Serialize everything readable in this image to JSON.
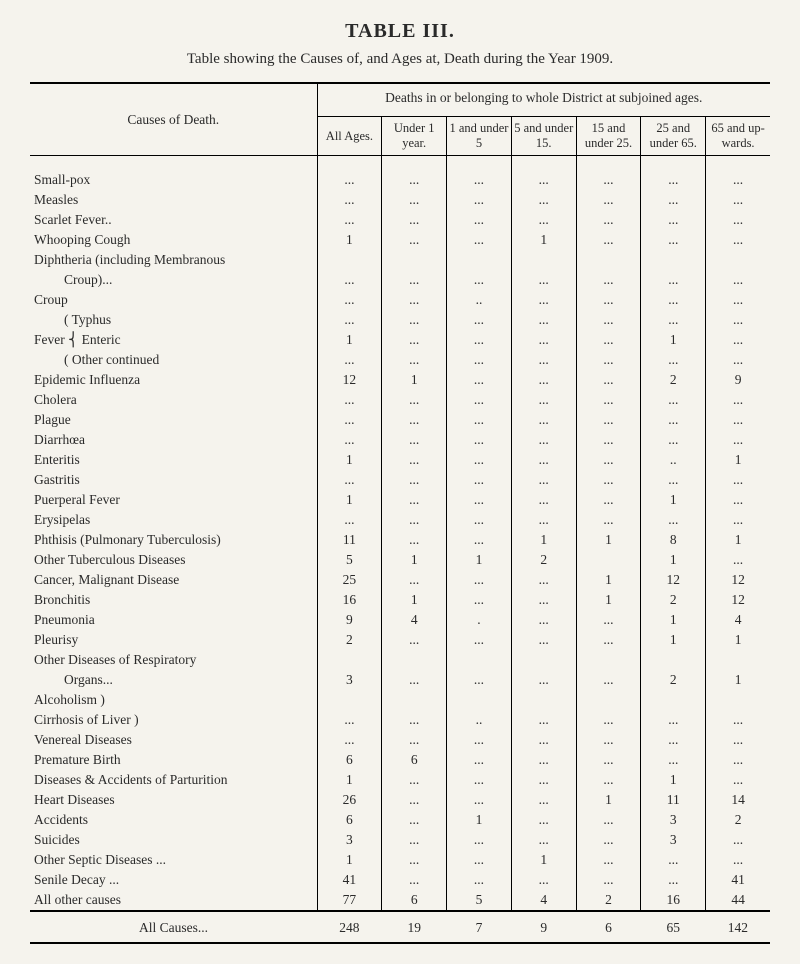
{
  "title": "TABLE III.",
  "subtitle": "Table showing the Causes of, and Ages at, Death during the Year 1909.",
  "row_header": "Causes of Death.",
  "super_header": "Deaths in or belonging to whole District at subjoined ages.",
  "columns": [
    "All Ages.",
    "Under 1 year.",
    "1 and under 5",
    "5 and under 15.",
    "15 and under 25.",
    "25 and under 65.",
    "65 and up-wards."
  ],
  "rows": [
    {
      "label": "Small-pox",
      "indent": 0,
      "vals": [
        "...",
        "...",
        "...",
        "...",
        "...",
        "...",
        "..."
      ]
    },
    {
      "label": "Measles",
      "indent": 0,
      "vals": [
        "...",
        "...",
        "...",
        "...",
        "...",
        "...",
        "..."
      ]
    },
    {
      "label": "Scarlet Fever..",
      "indent": 0,
      "vals": [
        "...",
        "...",
        "...",
        "...",
        "...",
        "...",
        "..."
      ]
    },
    {
      "label": "Whooping Cough",
      "indent": 0,
      "vals": [
        "1",
        "...",
        "...",
        "1",
        "...",
        "...",
        "..."
      ]
    },
    {
      "label": "Diphtheria (including Membranous",
      "indent": 0,
      "vals": [
        "",
        "",
        "",
        "",
        "",
        "",
        ""
      ]
    },
    {
      "label": "Croup)...",
      "indent": 1,
      "vals": [
        "...",
        "...",
        "...",
        "...",
        "...",
        "...",
        "..."
      ]
    },
    {
      "label": "Croup",
      "indent": 0,
      "vals": [
        "...",
        "...",
        "..",
        "...",
        "...",
        "...",
        "..."
      ]
    },
    {
      "label": "( Typhus",
      "indent": 1,
      "vals": [
        "...",
        "...",
        "...",
        "...",
        "...",
        "...",
        "..."
      ]
    },
    {
      "label": "Fever  ⎨ Enteric",
      "indent": 0,
      "vals": [
        "1",
        "...",
        "...",
        "...",
        "...",
        "1",
        "..."
      ]
    },
    {
      "label": "( Other continued",
      "indent": 1,
      "vals": [
        "...",
        "...",
        "...",
        "...",
        "...",
        "...",
        "..."
      ]
    },
    {
      "label": "Epidemic Influenza",
      "indent": 0,
      "vals": [
        "12",
        "1",
        "...",
        "...",
        "...",
        "2",
        "9"
      ]
    },
    {
      "label": "Cholera",
      "indent": 0,
      "vals": [
        "...",
        "...",
        "...",
        "...",
        "...",
        "...",
        "..."
      ]
    },
    {
      "label": "Plague",
      "indent": 0,
      "vals": [
        "...",
        "...",
        "...",
        "...",
        "...",
        "...",
        "..."
      ]
    },
    {
      "label": "Diarrhœa",
      "indent": 0,
      "vals": [
        "...",
        "...",
        "...",
        "...",
        "...",
        "...",
        "..."
      ]
    },
    {
      "label": "Enteritis",
      "indent": 0,
      "vals": [
        "1",
        "...",
        "...",
        "...",
        "...",
        "..",
        "1"
      ]
    },
    {
      "label": "Gastritis",
      "indent": 0,
      "vals": [
        "...",
        "...",
        "...",
        "...",
        "...",
        "...",
        "..."
      ]
    },
    {
      "label": "Puerperal Fever",
      "indent": 0,
      "vals": [
        "1",
        "...",
        "...",
        "...",
        "...",
        "1",
        "..."
      ]
    },
    {
      "label": "Erysipelas",
      "indent": 0,
      "vals": [
        "...",
        "...",
        "...",
        "...",
        "...",
        "...",
        "..."
      ]
    },
    {
      "label": "Phthisis (Pulmonary Tuberculosis)",
      "indent": 0,
      "vals": [
        "11",
        "...",
        "...",
        "1",
        "1",
        "8",
        "1"
      ]
    },
    {
      "label": "Other Tuberculous Diseases",
      "indent": 0,
      "vals": [
        "5",
        "1",
        "1",
        "2",
        "",
        "1",
        "..."
      ]
    },
    {
      "label": "Cancer, Malignant Disease",
      "indent": 0,
      "vals": [
        "25",
        "...",
        "...",
        "...",
        "1",
        "12",
        "12"
      ]
    },
    {
      "label": "Bronchitis",
      "indent": 0,
      "vals": [
        "16",
        "1",
        "...",
        "...",
        "1",
        "2",
        "12"
      ]
    },
    {
      "label": "Pneumonia",
      "indent": 0,
      "vals": [
        "9",
        "4",
        ".",
        "...",
        "...",
        "1",
        "4"
      ]
    },
    {
      "label": "Pleurisy",
      "indent": 0,
      "vals": [
        "2",
        "...",
        "...",
        "...",
        "...",
        "1",
        "1"
      ]
    },
    {
      "label": "Other Diseases of Respiratory",
      "indent": 0,
      "vals": [
        "",
        "",
        "",
        "",
        "",
        "",
        ""
      ]
    },
    {
      "label": "Organs...",
      "indent": 1,
      "vals": [
        "3",
        "...",
        "...",
        "...",
        "...",
        "2",
        "1"
      ]
    },
    {
      "label": "Alcoholism        )",
      "indent": 0,
      "vals": [
        "",
        "",
        "",
        "",
        "",
        "",
        ""
      ]
    },
    {
      "label": "Cirrhosis of Liver )",
      "indent": 0,
      "vals": [
        "...",
        "...",
        "..",
        "...",
        "...",
        "...",
        "..."
      ]
    },
    {
      "label": "Venereal Diseases",
      "indent": 0,
      "vals": [
        "...",
        "...",
        "...",
        "...",
        "...",
        "...",
        "..."
      ]
    },
    {
      "label": "Premature Birth",
      "indent": 0,
      "vals": [
        "6",
        "6",
        "...",
        "...",
        "...",
        "...",
        "..."
      ]
    },
    {
      "label": "Diseases & Accidents of Parturition",
      "indent": 0,
      "vals": [
        "1",
        "...",
        "...",
        "...",
        "...",
        "1",
        "..."
      ]
    },
    {
      "label": "Heart Diseases",
      "indent": 0,
      "vals": [
        "26",
        "...",
        "...",
        "...",
        "1",
        "11",
        "14"
      ]
    },
    {
      "label": "Accidents",
      "indent": 0,
      "vals": [
        "6",
        "...",
        "1",
        "...",
        "...",
        "3",
        "2"
      ]
    },
    {
      "label": "Suicides",
      "indent": 0,
      "vals": [
        "3",
        "...",
        "...",
        "...",
        "...",
        "3",
        "..."
      ]
    },
    {
      "label": "Other Septic Diseases ...",
      "indent": 0,
      "vals": [
        "1",
        "...",
        "...",
        "1",
        "...",
        "...",
        "..."
      ]
    },
    {
      "label": "Senile Decay ...",
      "indent": 0,
      "vals": [
        "41",
        "...",
        "...",
        "...",
        "...",
        "...",
        "41"
      ]
    },
    {
      "label": "All other causes",
      "indent": 0,
      "vals": [
        "77",
        "6",
        "5",
        "4",
        "2",
        "16",
        "44"
      ]
    }
  ],
  "totals": {
    "label": "All Causes...",
    "vals": [
      "248",
      "19",
      "7",
      "9",
      "6",
      "65",
      "142"
    ]
  }
}
